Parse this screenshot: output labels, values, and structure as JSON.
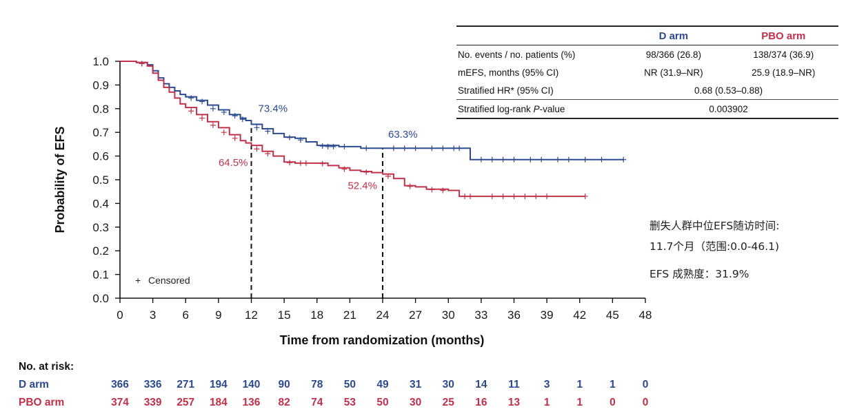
{
  "chart_data": {
    "type": "line",
    "subtype": "kaplan-meier",
    "ylabel": "Probability of EFS",
    "xlabel": "Time from randomization (months)",
    "xlim": [
      0,
      48
    ],
    "ylim": [
      0,
      1.0
    ],
    "x_ticks": [
      0,
      3,
      6,
      9,
      12,
      15,
      18,
      21,
      24,
      27,
      30,
      33,
      36,
      39,
      42,
      45,
      48
    ],
    "y_ticks": [
      "0.0",
      "0.1",
      "0.2",
      "0.3",
      "0.4",
      "0.5",
      "0.6",
      "0.7",
      "0.8",
      "0.9",
      "1.0"
    ],
    "legend": "Censored",
    "series": [
      {
        "name": "D arm",
        "color": "#2b4a8f",
        "steps": [
          [
            0,
            1.0
          ],
          [
            1.5,
            0.995
          ],
          [
            2.5,
            0.985
          ],
          [
            3,
            0.96
          ],
          [
            3.5,
            0.93
          ],
          [
            4,
            0.905
          ],
          [
            4.5,
            0.89
          ],
          [
            5,
            0.875
          ],
          [
            5.5,
            0.86
          ],
          [
            6,
            0.85
          ],
          [
            7,
            0.835
          ],
          [
            8,
            0.815
          ],
          [
            9,
            0.795
          ],
          [
            10,
            0.775
          ],
          [
            11,
            0.76
          ],
          [
            11.5,
            0.75
          ],
          [
            12,
            0.734
          ],
          [
            13,
            0.715
          ],
          [
            14,
            0.695
          ],
          [
            15,
            0.68
          ],
          [
            16,
            0.675
          ],
          [
            17,
            0.66
          ],
          [
            18,
            0.645
          ],
          [
            20,
            0.64
          ],
          [
            22,
            0.633
          ],
          [
            24,
            0.633
          ],
          [
            28,
            0.633
          ],
          [
            32,
            0.585
          ],
          [
            46,
            0.585
          ]
        ],
        "censored": [
          [
            2,
            0.99
          ],
          [
            6.5,
            0.845
          ],
          [
            7.5,
            0.83
          ],
          [
            8.5,
            0.8
          ],
          [
            9.5,
            0.785
          ],
          [
            10.5,
            0.77
          ],
          [
            11.2,
            0.755
          ],
          [
            12.5,
            0.72
          ],
          [
            13.5,
            0.705
          ],
          [
            15.5,
            0.678
          ],
          [
            16.5,
            0.668
          ],
          [
            18.5,
            0.642
          ],
          [
            19,
            0.64
          ],
          [
            19.5,
            0.64
          ],
          [
            20.5,
            0.64
          ],
          [
            22.5,
            0.633
          ],
          [
            25,
            0.633
          ],
          [
            26,
            0.633
          ],
          [
            27,
            0.633
          ],
          [
            28.5,
            0.633
          ],
          [
            29.5,
            0.633
          ],
          [
            30.5,
            0.633
          ],
          [
            31,
            0.633
          ],
          [
            33,
            0.585
          ],
          [
            34,
            0.585
          ],
          [
            35,
            0.585
          ],
          [
            36,
            0.585
          ],
          [
            37.5,
            0.585
          ],
          [
            38.5,
            0.585
          ],
          [
            40,
            0.585
          ],
          [
            41,
            0.585
          ],
          [
            42.5,
            0.585
          ],
          [
            44,
            0.585
          ],
          [
            46,
            0.585
          ]
        ]
      },
      {
        "name": "PBO arm",
        "color": "#c0304a",
        "steps": [
          [
            0,
            1.0
          ],
          [
            1.5,
            0.995
          ],
          [
            2.5,
            0.98
          ],
          [
            3,
            0.95
          ],
          [
            3.5,
            0.92
          ],
          [
            4,
            0.89
          ],
          [
            4.5,
            0.87
          ],
          [
            5,
            0.845
          ],
          [
            5.5,
            0.82
          ],
          [
            6,
            0.805
          ],
          [
            7,
            0.775
          ],
          [
            8,
            0.745
          ],
          [
            9,
            0.72
          ],
          [
            10,
            0.69
          ],
          [
            11,
            0.665
          ],
          [
            11.5,
            0.655
          ],
          [
            12,
            0.645
          ],
          [
            13,
            0.62
          ],
          [
            14,
            0.6
          ],
          [
            15,
            0.575
          ],
          [
            16,
            0.57
          ],
          [
            18,
            0.57
          ],
          [
            19,
            0.56
          ],
          [
            20,
            0.55
          ],
          [
            21,
            0.54
          ],
          [
            22,
            0.535
          ],
          [
            23,
            0.53
          ],
          [
            24,
            0.524
          ],
          [
            25,
            0.505
          ],
          [
            26,
            0.475
          ],
          [
            27,
            0.47
          ],
          [
            28,
            0.46
          ],
          [
            30,
            0.455
          ],
          [
            31,
            0.43
          ],
          [
            42.5,
            0.43
          ]
        ],
        "censored": [
          [
            2,
            0.99
          ],
          [
            6.5,
            0.79
          ],
          [
            7.5,
            0.76
          ],
          [
            8.5,
            0.73
          ],
          [
            9.5,
            0.7
          ],
          [
            10.5,
            0.675
          ],
          [
            12.5,
            0.63
          ],
          [
            13.5,
            0.61
          ],
          [
            15.5,
            0.572
          ],
          [
            16.5,
            0.57
          ],
          [
            17,
            0.57
          ],
          [
            18.5,
            0.568
          ],
          [
            20.5,
            0.545
          ],
          [
            22.5,
            0.532
          ],
          [
            24.5,
            0.515
          ],
          [
            26.5,
            0.472
          ],
          [
            28.5,
            0.458
          ],
          [
            29.5,
            0.455
          ],
          [
            31.5,
            0.43
          ],
          [
            32,
            0.43
          ],
          [
            34,
            0.43
          ],
          [
            35,
            0.43
          ],
          [
            36,
            0.43
          ],
          [
            37,
            0.43
          ],
          [
            38,
            0.43
          ],
          [
            39,
            0.43
          ],
          [
            42.5,
            0.43
          ]
        ]
      }
    ],
    "annotations": [
      {
        "text": "73.4%",
        "x": 12,
        "y": 0.734,
        "series": "D arm"
      },
      {
        "text": "64.5%",
        "x": 12,
        "y": 0.645,
        "series": "PBO arm"
      },
      {
        "text": "63.3%",
        "x": 24,
        "y": 0.633,
        "series": "D arm"
      },
      {
        "text": "52.4%",
        "x": 24,
        "y": 0.524,
        "series": "PBO arm"
      }
    ],
    "reference_lines": [
      12,
      24
    ]
  },
  "summary_table": {
    "headers": [
      "",
      "D arm",
      "PBO arm"
    ],
    "rows": [
      {
        "label": "No. events / no. patients (%)",
        "d": "98/366 (26.8)",
        "pbo": "138/374 (36.9)"
      },
      {
        "label": "mEFS, months (95% CI)",
        "d": "NR (31.9–NR)",
        "pbo": "25.9 (18.9–NR)"
      },
      {
        "label": "Stratified HR* (95% CI)",
        "combined": "0.68 (0.53–0.88)"
      },
      {
        "label_pre": "Stratified log-rank ",
        "label_italic": "P",
        "label_post": "-value",
        "combined": "0.003902"
      }
    ]
  },
  "side_note": {
    "line1": "删失人群中位EFS随访时间:",
    "line2": "11.7个月（范围:0.0-46.1)",
    "line3": "EFS 成熟度：31.9%"
  },
  "risk_table": {
    "title": "No. at risk:",
    "d_label": "D arm",
    "pbo_label": "PBO arm",
    "d_values": [
      "366",
      "336",
      "271",
      "194",
      "140",
      "90",
      "78",
      "50",
      "49",
      "31",
      "30",
      "14",
      "11",
      "3",
      "1",
      "1",
      "0"
    ],
    "pbo_values": [
      "374",
      "339",
      "257",
      "184",
      "136",
      "82",
      "74",
      "53",
      "50",
      "30",
      "25",
      "16",
      "13",
      "1",
      "1",
      "0",
      "0"
    ]
  }
}
